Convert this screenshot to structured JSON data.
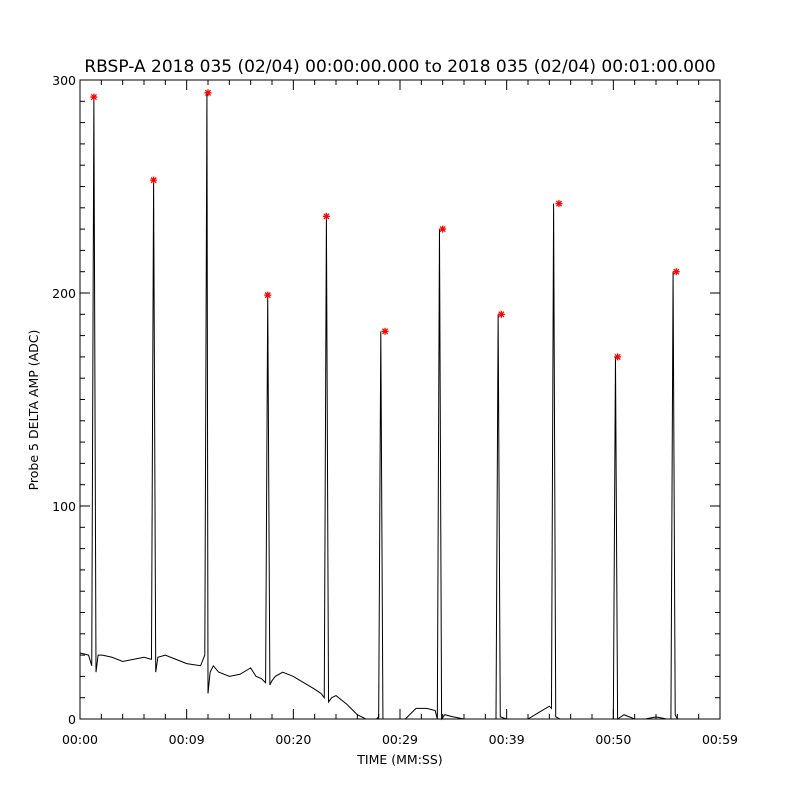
{
  "chart_data": {
    "type": "line",
    "title": "RBSP-A 2018 035 (02/04) 00:00:00.000 to 2018 035 (02/04) 00:01:00.000",
    "xlabel": "TIME (MM:SS)",
    "ylabel": "Probe 5 DELTA AMP (ADC)",
    "xlim": [
      0,
      60
    ],
    "ylim": [
      0,
      300
    ],
    "x_tick_values": [
      0,
      10,
      20,
      30,
      40,
      50,
      60
    ],
    "x_tick_labels": [
      "00:00",
      "00:09",
      "00:20",
      "00:29",
      "00:39",
      "00:50",
      "00:59"
    ],
    "y_tick_values": [
      0,
      100,
      200,
      300
    ],
    "y_tick_labels": [
      "0",
      "100",
      "200",
      "300"
    ],
    "grid": false,
    "colors": {
      "line": "#000000",
      "peak_marker": "#ff0000",
      "axes": "#000000"
    },
    "peak_marker_symbol": "*",
    "series": [
      {
        "role": "signal",
        "color": "#000000",
        "x": [
          0.0,
          0.8,
          1.1,
          1.3,
          1.5,
          1.7,
          2.1,
          3.0,
          4.0,
          5.0,
          6.0,
          6.7,
          6.9,
          7.1,
          7.3,
          8.0,
          9.0,
          10.0,
          11.3,
          11.7,
          11.9,
          12.0,
          12.2,
          12.5,
          13.0,
          14.0,
          15.0,
          16.0,
          16.5,
          17.0,
          17.4,
          17.6,
          17.8,
          18.0,
          18.3,
          19.0,
          20.0,
          21.0,
          22.0,
          22.6,
          22.9,
          23.1,
          23.3,
          23.6,
          24.0,
          25.0,
          26.0,
          26.8,
          27.8,
          28.0,
          28.2,
          28.4,
          28.6,
          29.0,
          30.5,
          31.5,
          32.5,
          33.3,
          33.5,
          33.7,
          33.9,
          34.2,
          35.0,
          36.0,
          36.5,
          38.5,
          38.8,
          39.0,
          39.2,
          39.4,
          40.0,
          42.0,
          43.0,
          44.0,
          44.2,
          44.4,
          44.6,
          45.0,
          46.0,
          49.0,
          49.7,
          50.0,
          50.2,
          50.4,
          51.0,
          52.0,
          53.0,
          54.0,
          55.0,
          55.4,
          55.6,
          55.8,
          56.0,
          56.5,
          57.0,
          60.0
        ],
        "y": [
          31,
          30,
          25,
          292,
          22,
          30,
          30,
          29,
          27,
          28,
          29,
          28,
          253,
          22,
          29,
          30,
          28,
          26,
          25,
          30,
          294,
          12,
          22,
          25,
          22,
          20,
          21,
          24,
          20,
          19,
          17,
          199,
          16,
          18,
          20,
          22,
          20,
          17,
          14,
          12,
          10,
          236,
          8,
          10,
          11,
          7,
          2,
          0,
          0,
          1,
          182,
          0,
          0,
          0,
          0,
          5,
          5,
          4,
          0,
          230,
          0,
          2,
          1,
          0,
          0,
          0,
          0,
          0,
          190,
          1,
          0,
          0,
          3,
          6,
          5,
          242,
          1,
          0,
          0,
          0,
          0,
          0,
          170,
          0,
          2,
          0,
          0,
          1,
          0,
          0,
          210,
          2,
          0,
          0,
          0,
          0
        ]
      },
      {
        "role": "peaks",
        "color": "#ff0000",
        "x": [
          1.3,
          6.9,
          12.0,
          17.6,
          23.1,
          28.6,
          34.0,
          39.5,
          44.9,
          50.4,
          55.9
        ],
        "y": [
          292,
          253,
          294,
          199,
          236,
          182,
          230,
          190,
          242,
          170,
          210
        ]
      }
    ]
  }
}
